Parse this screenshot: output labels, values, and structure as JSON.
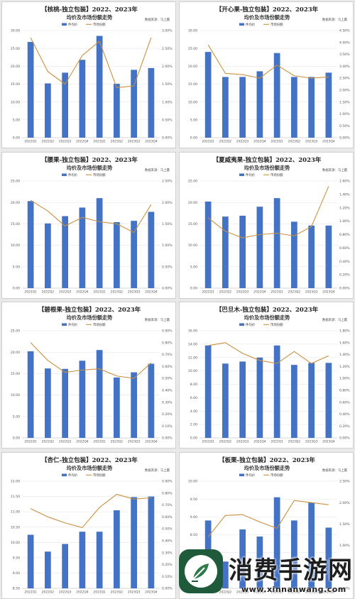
{
  "colors": {
    "bar": "#4472c4",
    "line": "#c9913f",
    "grid": "#e3e3e3",
    "axis": "#bdbdbd"
  },
  "watermark": {
    "title": "消费手游网",
    "url": "www.xinnanwang.com",
    "icon": "leaf-pen-icon"
  },
  "chart_data": [
    {
      "type": "bar",
      "title": "【核桃-独立包装】2022、2023年",
      "subtitle": "均价及市场份额走势",
      "source": "数据来源：马上赢",
      "legend": [
        "件均价",
        "市场份额"
      ],
      "categories": [
        "2022Q1",
        "2022Q2",
        "2022Q3",
        "2022Q4",
        "2023Q1",
        "2023Q2",
        "2023Q3",
        "2023Q4"
      ],
      "y_ticks": [
        "0.00",
        "5.00",
        "10.00",
        "15.00",
        "20.00",
        "25.00",
        "30.00"
      ],
      "y2_ticks": [
        "0.00%",
        "0.50%",
        "1.00%",
        "1.50%",
        "2.00%",
        "2.50%",
        "3.00%"
      ],
      "ylim": [
        0,
        30
      ],
      "y2lim": [
        0,
        3.0
      ],
      "series": [
        {
          "name": "件均价",
          "type": "bar",
          "values": [
            26.8,
            15.2,
            18.2,
            21.8,
            28.5,
            15.1,
            19.0,
            19.5
          ]
        },
        {
          "name": "市场份额",
          "type": "line",
          "axis": "right",
          "values": [
            2.8,
            1.85,
            1.5,
            2.3,
            2.7,
            1.4,
            1.45,
            2.8
          ]
        }
      ]
    },
    {
      "type": "bar",
      "title": "【开心果-独立包装】2022、2023年",
      "subtitle": "均价及市场份额走势",
      "source": "数据来源：马上赢",
      "legend": [
        "件均价",
        "市场份额"
      ],
      "categories": [
        "2022Q1",
        "2022Q2",
        "2022Q3",
        "2022Q4",
        "2023Q1",
        "2023Q2",
        "2023Q3",
        "2023Q4"
      ],
      "y_ticks": [
        "0.00",
        "5.00",
        "10.00",
        "15.00",
        "20.00",
        "25.00",
        "30.00"
      ],
      "y2_ticks": [
        "0.00%",
        "0.50%",
        "1.00%",
        "1.50%",
        "2.00%",
        "2.50%",
        "3.00%",
        "3.50%",
        "4.00%",
        "4.50%"
      ],
      "ylim": [
        0,
        30
      ],
      "y2lim": [
        0,
        4.5
      ],
      "series": [
        {
          "name": "件均价",
          "type": "bar",
          "values": [
            24.0,
            17.0,
            17.0,
            18.6,
            23.7,
            17.0,
            17.0,
            18.2
          ]
        },
        {
          "name": "市场份额",
          "type": "line",
          "axis": "right",
          "values": [
            3.9,
            2.7,
            2.65,
            2.5,
            3.05,
            2.6,
            2.5,
            2.55
          ]
        }
      ]
    },
    {
      "type": "bar",
      "title": "【腰果-独立包装】2022、2023年",
      "subtitle": "均价及市场份额走势",
      "source": "数据来源：马上赢",
      "legend": [
        "件均价",
        "市场份额"
      ],
      "categories": [
        "2022Q1",
        "2022Q2",
        "2022Q3",
        "2022Q4",
        "2023Q1",
        "2023Q2",
        "2023Q3",
        "2023Q4"
      ],
      "y_ticks": [
        "0.00",
        "5.00",
        "10.00",
        "15.00",
        "20.00",
        "25.00"
      ],
      "y2_ticks": [
        "0.00%",
        "0.50%",
        "1.00%",
        "1.50%",
        "2.00%",
        "2.50%"
      ],
      "ylim": [
        0,
        25
      ],
      "y2lim": [
        0,
        2.5
      ],
      "series": [
        {
          "name": "件均价",
          "type": "bar",
          "values": [
            20.3,
            15.1,
            16.8,
            18.8,
            21.0,
            15.4,
            15.7,
            17.8
          ]
        },
        {
          "name": "市场份额",
          "type": "line",
          "axis": "right",
          "values": [
            2.05,
            1.8,
            1.45,
            1.65,
            1.55,
            1.5,
            1.3,
            1.95
          ]
        }
      ]
    },
    {
      "type": "bar",
      "title": "【夏威夷果-独立包装】2022、2023年",
      "subtitle": "均价及市场份额走势",
      "source": "数据来源：马上赢",
      "legend": [
        "件均价",
        "市场份额"
      ],
      "categories": [
        "2022Q1",
        "2022Q2",
        "2022Q3",
        "2022Q4",
        "2023Q1",
        "2023Q2",
        "2023Q3",
        "2023Q4"
      ],
      "y_ticks": [
        "0.00",
        "5.00",
        "10.00",
        "15.00",
        "20.00",
        "25.00"
      ],
      "y2_ticks": [
        "0.00%",
        "0.20%",
        "0.40%",
        "0.60%",
        "0.80%",
        "1.00%",
        "1.20%",
        "1.40%",
        "1.60%"
      ],
      "ylim": [
        0,
        25
      ],
      "y2lim": [
        0,
        1.6
      ],
      "series": [
        {
          "name": "件均价",
          "type": "bar",
          "values": [
            20.2,
            16.7,
            16.9,
            19.0,
            21.0,
            15.5,
            14.6,
            14.6
          ]
        },
        {
          "name": "市场份额",
          "type": "line",
          "axis": "right",
          "values": [
            1.05,
            0.85,
            0.75,
            0.8,
            0.82,
            0.78,
            0.92,
            1.52
          ]
        }
      ]
    },
    {
      "type": "bar",
      "title": "【碧根果-独立包装】2022、2023年",
      "subtitle": "均价及市场份额走势",
      "source": "数据来源：马上赢",
      "legend": [
        "件均价",
        "市场份额"
      ],
      "categories": [
        "2022Q1",
        "2022Q2",
        "2022Q3",
        "2022Q4",
        "2023Q1",
        "2023Q2",
        "2023Q3",
        "2023Q4"
      ],
      "y_ticks": [
        "0.00",
        "5.00",
        "10.00",
        "15.00",
        "20.00",
        "25.00"
      ],
      "y2_ticks": [
        "0.00%",
        "0.10%",
        "0.20%",
        "0.30%",
        "0.40%",
        "0.50%",
        "0.60%",
        "0.70%",
        "0.80%",
        "0.90%"
      ],
      "ylim": [
        0,
        25
      ],
      "y2lim": [
        0,
        0.9
      ],
      "series": [
        {
          "name": "件均价",
          "type": "bar",
          "values": [
            20.2,
            16.2,
            16.1,
            18.0,
            20.5,
            14.1,
            15.3,
            17.3
          ]
        },
        {
          "name": "市场份额",
          "type": "line",
          "axis": "right",
          "values": [
            0.8,
            0.65,
            0.55,
            0.57,
            0.58,
            0.52,
            0.5,
            0.63
          ]
        }
      ]
    },
    {
      "type": "bar",
      "title": "【巴旦木-独立包装】2022、2023年",
      "subtitle": "均价及市场份额走势",
      "source": "数据来源：马上赢",
      "legend": [
        "件均价",
        "市场份额"
      ],
      "categories": [
        "2022Q1",
        "2022Q2",
        "2022Q3",
        "2022Q4",
        "2023Q1",
        "2023Q2",
        "2023Q3",
        "2023Q4"
      ],
      "y_ticks": [
        "0.00",
        "2.00",
        "4.00",
        "6.00",
        "8.00",
        "10.00",
        "12.00",
        "14.00",
        "16.00"
      ],
      "y2_ticks": [
        "0.00%",
        "0.20%",
        "0.40%",
        "0.60%",
        "0.80%",
        "1.00%",
        "1.20%",
        "1.40%",
        "1.60%",
        "1.80%"
      ],
      "ylim": [
        0,
        16
      ],
      "y2lim": [
        0,
        1.8
      ],
      "series": [
        {
          "name": "件均价",
          "type": "bar",
          "values": [
            13.8,
            11.1,
            11.4,
            12.0,
            13.8,
            10.9,
            11.2,
            11.2
          ]
        },
        {
          "name": "市场份额",
          "type": "line",
          "axis": "right",
          "values": [
            1.55,
            1.6,
            1.42,
            1.3,
            1.25,
            1.45,
            1.25,
            1.38
          ]
        }
      ]
    },
    {
      "type": "bar",
      "title": "【杏仁-独立包装】2022、2023年",
      "subtitle": "均价及市场份额走势",
      "source": "数据来源：马上赢",
      "legend": [
        "件均价",
        "市场份额"
      ],
      "categories": [
        "2022Q1",
        "2022Q2",
        "2022Q3",
        "2022Q4",
        "2023Q1",
        "2023Q2",
        "2023Q3",
        "2023Q4"
      ],
      "y_ticks": [
        "8.50",
        "9.00",
        "9.50",
        "10.00",
        "10.50",
        "11.00",
        "11.50",
        "12.00"
      ],
      "y2_ticks": [
        "0.00%",
        "0.10%",
        "0.20%",
        "0.30%",
        "0.40%",
        "0.50%",
        "0.60%",
        "0.70%",
        "0.80%",
        "0.90%"
      ],
      "ylim": [
        8.5,
        12.0
      ],
      "y2lim": [
        0,
        0.9
      ],
      "series": [
        {
          "name": "件均价",
          "type": "bar",
          "values": [
            10.25,
            9.7,
            9.95,
            10.35,
            10.35,
            11.05,
            11.48,
            11.5
          ]
        },
        {
          "name": "市场份额",
          "type": "line",
          "axis": "right",
          "values": [
            0.67,
            0.6,
            0.55,
            0.51,
            0.68,
            0.79,
            0.75,
            0.76
          ]
        }
      ]
    },
    {
      "type": "bar",
      "title": "【板栗-独立包装】2022、2023年",
      "subtitle": "均价及市场份额走势",
      "source": "数据来源：马上赢",
      "legend": [
        "件均价",
        "市场份额"
      ],
      "categories": [
        "2022Q1",
        "2022Q2",
        "2022Q3",
        "2022Q4",
        "2023Q1",
        "2023Q2",
        "2023Q3",
        "2023Q4"
      ],
      "y_ticks": [
        "7.00",
        "7.50",
        "8.00",
        "8.50",
        "9.00",
        "9.50",
        "10.00"
      ],
      "y2_ticks": [
        "0.00%",
        "0.50%",
        "1.00%",
        "1.50%",
        "2.00%",
        "2.50%"
      ],
      "ylim": [
        7.0,
        10.0
      ],
      "y2lim": [
        0,
        2.5
      ],
      "series": [
        {
          "name": "件均价",
          "type": "bar",
          "values": [
            8.9,
            7.75,
            8.65,
            8.45,
            9.55,
            8.9,
            9.4,
            8.7
          ]
        },
        {
          "name": "市场份额",
          "type": "line",
          "axis": "right",
          "values": [
            1.2,
            1.7,
            1.72,
            1.55,
            1.4,
            2.05,
            2.0,
            1.95
          ]
        }
      ]
    }
  ]
}
